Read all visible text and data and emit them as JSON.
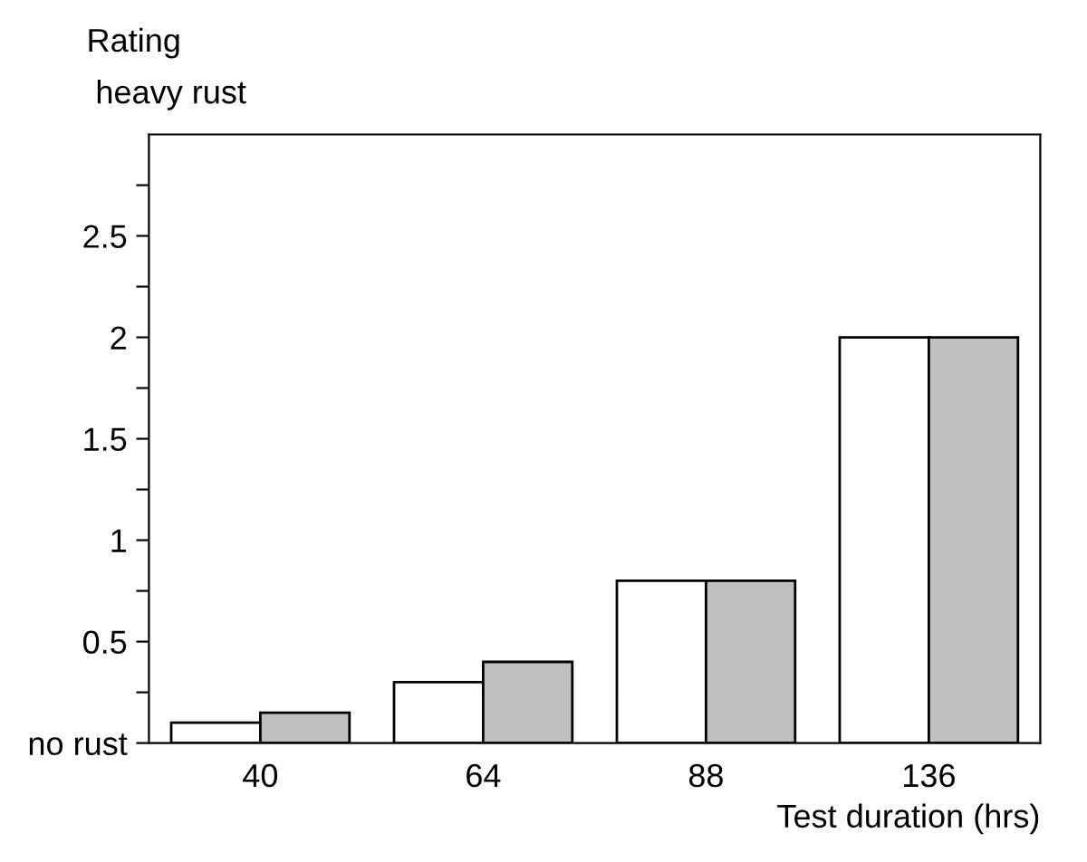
{
  "chart_data": {
    "type": "bar",
    "ylabel": "Rating",
    "xlabel": "Test duration (hrs)",
    "annotations": [
      "heavy rust"
    ],
    "categories": [
      "40",
      "64",
      "88",
      "136"
    ],
    "series": [
      {
        "color": "#ffffff",
        "values": [
          0.1,
          0.3,
          0.8,
          2
        ]
      },
      {
        "color": "#c0c0c0",
        "values": [
          0.15,
          0.4,
          0.8,
          2
        ]
      }
    ],
    "ylim": [
      0,
      3
    ],
    "yticks": [
      {
        "value": 0,
        "label": "no rust"
      },
      {
        "value": 0.25,
        "label": null
      },
      0.5,
      {
        "value": 0.75,
        "label": null
      },
      1,
      {
        "value": 1.25,
        "label": null
      },
      1.5,
      {
        "value": 1.75,
        "label": null
      },
      2,
      {
        "value": 2.25,
        "label": null
      },
      2.5,
      {
        "value": 2.75,
        "label": null
      }
    ],
    "grid": false,
    "legend": false
  }
}
